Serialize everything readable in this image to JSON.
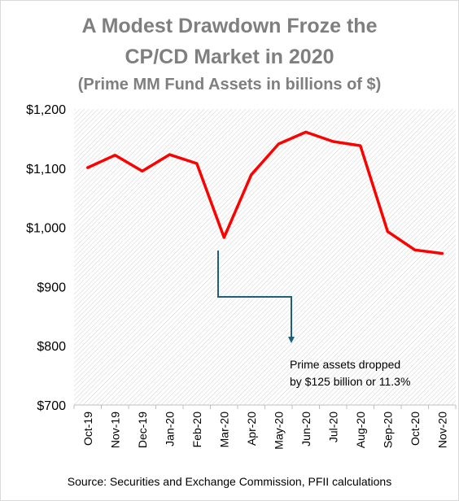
{
  "title_line1": "A Modest Drawdown Froze the",
  "title_line2": "CP/CD Market in 2020",
  "subtitle": "(Prime MM  Fund Assets in billions of $)",
  "source": "Source:  Securities and Exchange Commission, PFII calculations",
  "annotation": {
    "line1": "Prime assets dropped",
    "line2": "by $125  billion or 11.3%"
  },
  "colors": {
    "series": "#ff0000",
    "arrow": "#1f5f7a",
    "title": "#7f7f7f",
    "hatch": "#d0d0d0"
  },
  "chart_data": {
    "type": "line",
    "title": "A Modest Drawdown Froze the CP/CD Market in 2020",
    "subtitle": "(Prime MM  Fund Assets in billions of $)",
    "categories": [
      "Oct-19",
      "Nov-19",
      "Dec-19",
      "Jan-20",
      "Feb-20",
      "Mar-20",
      "Apr-20",
      "May-20",
      "Jun-20",
      "Jul-20",
      "Aug-20",
      "Sep-20",
      "Oct-20",
      "Nov-20"
    ],
    "series": [
      {
        "values": [
          1101,
          1122,
          1095,
          1123,
          1108,
          983,
          1089,
          1141,
          1161,
          1145,
          1138,
          993,
          962,
          956
        ]
      }
    ],
    "ylim": [
      700,
      1200
    ],
    "yticks": [
      700,
      800,
      900,
      1000,
      1100,
      1200
    ],
    "ytick_labels": [
      "$700",
      "$800",
      "$900",
      "$1,000",
      "$1,100",
      "$1,200"
    ],
    "grid": false,
    "legend": "none",
    "background": "diagonal-hatch"
  }
}
